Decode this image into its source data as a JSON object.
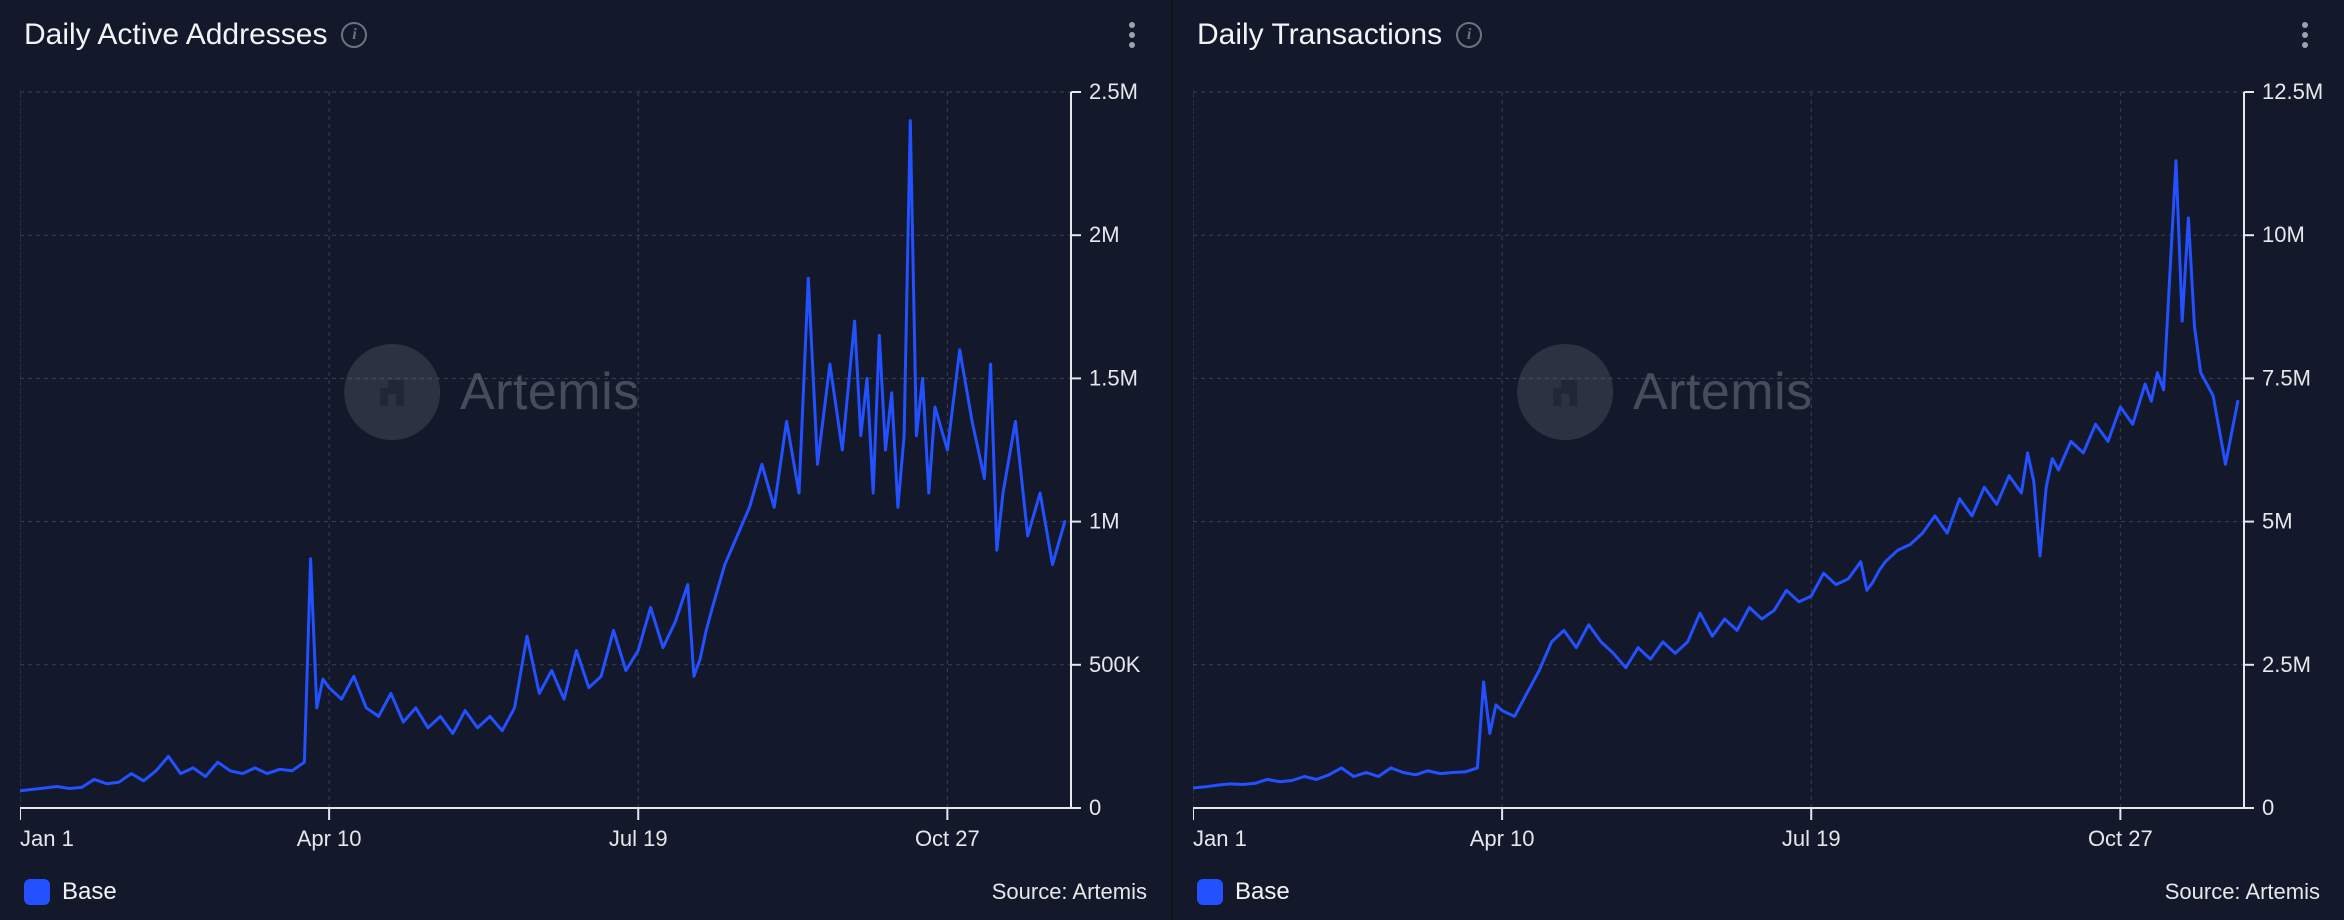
{
  "watermark": {
    "text": "Artemis"
  },
  "source_label": "Source: Artemis",
  "info_glyph": "i",
  "legend": {
    "label": "Base",
    "swatch_color": "#2351ff"
  },
  "colors": {
    "panel_bg": "#13182a",
    "grid": "#3b4252",
    "axis_text": "#e5e7eb",
    "axis_line": "#e5e7eb",
    "line": "#2351ff",
    "watermark_fg": "#cfd3da"
  },
  "charts": [
    {
      "title": "Daily Active Addresses",
      "type": "line",
      "line_color": "#2351ff",
      "line_width": 3,
      "background_color": "#13182a",
      "grid_color": "#3b4252",
      "x_ticks": [
        "Jan 1",
        "Apr 10",
        "Jul 19",
        "Oct 27"
      ],
      "x_tick_positions": [
        0,
        100,
        200,
        300
      ],
      "x_domain": [
        0,
        340
      ],
      "y_ticks": [
        "0",
        "500K",
        "1M",
        "1.5M",
        "2M",
        "2.5M"
      ],
      "y_tick_values": [
        0,
        500000,
        1000000,
        1500000,
        2000000,
        2500000
      ],
      "ylim": [
        0,
        2500000
      ],
      "series": [
        [
          0,
          60000
        ],
        [
          4,
          65000
        ],
        [
          8,
          70000
        ],
        [
          12,
          75000
        ],
        [
          16,
          68000
        ],
        [
          20,
          72000
        ],
        [
          24,
          100000
        ],
        [
          28,
          85000
        ],
        [
          32,
          90000
        ],
        [
          36,
          120000
        ],
        [
          40,
          95000
        ],
        [
          44,
          130000
        ],
        [
          48,
          180000
        ],
        [
          52,
          120000
        ],
        [
          56,
          140000
        ],
        [
          60,
          110000
        ],
        [
          64,
          160000
        ],
        [
          68,
          130000
        ],
        [
          72,
          120000
        ],
        [
          76,
          140000
        ],
        [
          80,
          120000
        ],
        [
          84,
          135000
        ],
        [
          88,
          130000
        ],
        [
          92,
          160000
        ],
        [
          94,
          870000
        ],
        [
          96,
          350000
        ],
        [
          98,
          450000
        ],
        [
          100,
          420000
        ],
        [
          104,
          380000
        ],
        [
          108,
          460000
        ],
        [
          112,
          350000
        ],
        [
          116,
          320000
        ],
        [
          120,
          400000
        ],
        [
          124,
          300000
        ],
        [
          128,
          350000
        ],
        [
          132,
          280000
        ],
        [
          136,
          320000
        ],
        [
          140,
          260000
        ],
        [
          144,
          340000
        ],
        [
          148,
          280000
        ],
        [
          152,
          320000
        ],
        [
          156,
          270000
        ],
        [
          160,
          350000
        ],
        [
          164,
          600000
        ],
        [
          168,
          400000
        ],
        [
          172,
          480000
        ],
        [
          176,
          380000
        ],
        [
          180,
          550000
        ],
        [
          184,
          420000
        ],
        [
          188,
          460000
        ],
        [
          192,
          620000
        ],
        [
          196,
          480000
        ],
        [
          200,
          550000
        ],
        [
          204,
          700000
        ],
        [
          208,
          560000
        ],
        [
          212,
          650000
        ],
        [
          216,
          780000
        ],
        [
          218,
          460000
        ],
        [
          220,
          520000
        ],
        [
          222,
          620000
        ],
        [
          224,
          700000
        ],
        [
          228,
          850000
        ],
        [
          232,
          950000
        ],
        [
          236,
          1050000
        ],
        [
          240,
          1200000
        ],
        [
          244,
          1050000
        ],
        [
          248,
          1350000
        ],
        [
          252,
          1100000
        ],
        [
          255,
          1850000
        ],
        [
          258,
          1200000
        ],
        [
          262,
          1550000
        ],
        [
          266,
          1250000
        ],
        [
          270,
          1700000
        ],
        [
          272,
          1300000
        ],
        [
          274,
          1500000
        ],
        [
          276,
          1100000
        ],
        [
          278,
          1650000
        ],
        [
          280,
          1250000
        ],
        [
          282,
          1450000
        ],
        [
          284,
          1050000
        ],
        [
          286,
          1300000
        ],
        [
          288,
          2400000
        ],
        [
          290,
          1300000
        ],
        [
          292,
          1500000
        ],
        [
          294,
          1100000
        ],
        [
          296,
          1400000
        ],
        [
          300,
          1250000
        ],
        [
          304,
          1600000
        ],
        [
          308,
          1350000
        ],
        [
          312,
          1150000
        ],
        [
          314,
          1550000
        ],
        [
          316,
          900000
        ],
        [
          318,
          1100000
        ],
        [
          322,
          1350000
        ],
        [
          326,
          950000
        ],
        [
          330,
          1100000
        ],
        [
          334,
          850000
        ],
        [
          338,
          1000000
        ]
      ]
    },
    {
      "title": "Daily Transactions",
      "type": "line",
      "line_color": "#2351ff",
      "line_width": 3,
      "background_color": "#13182a",
      "grid_color": "#3b4252",
      "x_ticks": [
        "Jan 1",
        "Apr 10",
        "Jul 19",
        "Oct 27"
      ],
      "x_tick_positions": [
        0,
        100,
        200,
        300
      ],
      "x_domain": [
        0,
        340
      ],
      "y_ticks": [
        "0",
        "2.5M",
        "5M",
        "7.5M",
        "10M",
        "12.5M"
      ],
      "y_tick_values": [
        0,
        2500000,
        5000000,
        7500000,
        10000000,
        12500000
      ],
      "ylim": [
        0,
        12500000
      ],
      "series": [
        [
          0,
          350000
        ],
        [
          4,
          370000
        ],
        [
          8,
          400000
        ],
        [
          12,
          420000
        ],
        [
          16,
          410000
        ],
        [
          20,
          430000
        ],
        [
          24,
          500000
        ],
        [
          28,
          460000
        ],
        [
          32,
          480000
        ],
        [
          36,
          550000
        ],
        [
          40,
          500000
        ],
        [
          44,
          580000
        ],
        [
          48,
          700000
        ],
        [
          52,
          550000
        ],
        [
          56,
          620000
        ],
        [
          60,
          550000
        ],
        [
          64,
          700000
        ],
        [
          68,
          620000
        ],
        [
          72,
          580000
        ],
        [
          76,
          650000
        ],
        [
          80,
          600000
        ],
        [
          84,
          620000
        ],
        [
          88,
          630000
        ],
        [
          92,
          700000
        ],
        [
          94,
          2200000
        ],
        [
          96,
          1300000
        ],
        [
          98,
          1800000
        ],
        [
          100,
          1700000
        ],
        [
          104,
          1600000
        ],
        [
          108,
          2000000
        ],
        [
          112,
          2400000
        ],
        [
          116,
          2900000
        ],
        [
          120,
          3100000
        ],
        [
          124,
          2800000
        ],
        [
          128,
          3200000
        ],
        [
          132,
          2900000
        ],
        [
          136,
          2700000
        ],
        [
          140,
          2450000
        ],
        [
          144,
          2800000
        ],
        [
          148,
          2600000
        ],
        [
          152,
          2900000
        ],
        [
          156,
          2700000
        ],
        [
          160,
          2900000
        ],
        [
          164,
          3400000
        ],
        [
          168,
          3000000
        ],
        [
          172,
          3300000
        ],
        [
          176,
          3100000
        ],
        [
          180,
          3500000
        ],
        [
          184,
          3300000
        ],
        [
          188,
          3450000
        ],
        [
          192,
          3800000
        ],
        [
          196,
          3600000
        ],
        [
          200,
          3700000
        ],
        [
          204,
          4100000
        ],
        [
          208,
          3900000
        ],
        [
          212,
          4000000
        ],
        [
          216,
          4300000
        ],
        [
          218,
          3800000
        ],
        [
          220,
          3950000
        ],
        [
          222,
          4150000
        ],
        [
          224,
          4300000
        ],
        [
          228,
          4500000
        ],
        [
          232,
          4600000
        ],
        [
          236,
          4800000
        ],
        [
          240,
          5100000
        ],
        [
          244,
          4800000
        ],
        [
          248,
          5400000
        ],
        [
          252,
          5100000
        ],
        [
          256,
          5600000
        ],
        [
          260,
          5300000
        ],
        [
          264,
          5800000
        ],
        [
          268,
          5500000
        ],
        [
          270,
          6200000
        ],
        [
          272,
          5700000
        ],
        [
          274,
          4400000
        ],
        [
          276,
          5600000
        ],
        [
          278,
          6100000
        ],
        [
          280,
          5900000
        ],
        [
          284,
          6400000
        ],
        [
          288,
          6200000
        ],
        [
          292,
          6700000
        ],
        [
          296,
          6400000
        ],
        [
          300,
          7000000
        ],
        [
          304,
          6700000
        ],
        [
          308,
          7400000
        ],
        [
          310,
          7100000
        ],
        [
          312,
          7600000
        ],
        [
          314,
          7300000
        ],
        [
          316,
          9300000
        ],
        [
          318,
          11300000
        ],
        [
          320,
          8500000
        ],
        [
          322,
          10300000
        ],
        [
          324,
          8400000
        ],
        [
          326,
          7600000
        ],
        [
          330,
          7200000
        ],
        [
          334,
          6000000
        ],
        [
          338,
          7100000
        ]
      ]
    }
  ]
}
